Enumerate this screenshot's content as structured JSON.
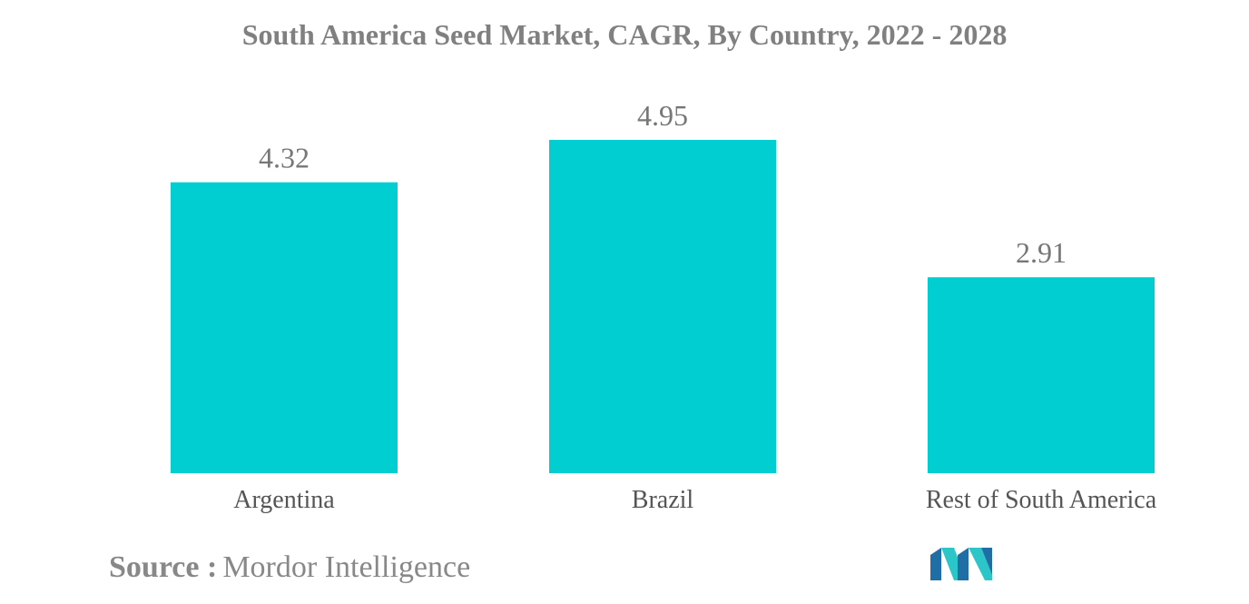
{
  "chart_data": {
    "type": "bar",
    "title": "South America Seed Market, CAGR, By Country, 2022 - 2028",
    "categories": [
      "Argentina",
      "Brazil",
      "Rest of South America"
    ],
    "values": [
      4.32,
      4.95,
      2.91
    ],
    "data_labels": [
      "4.32",
      "4.95",
      "2.91"
    ],
    "ylim": [
      0,
      4.95
    ],
    "grid": false,
    "legend": "none",
    "bar_color": "#00CED1"
  },
  "source": {
    "label": "Source :",
    "name": "Mordor Intelligence"
  },
  "logo": {
    "icon": "mordor-intelligence-logo",
    "colors": [
      "#1F6FA6",
      "#2CC6C9"
    ]
  }
}
